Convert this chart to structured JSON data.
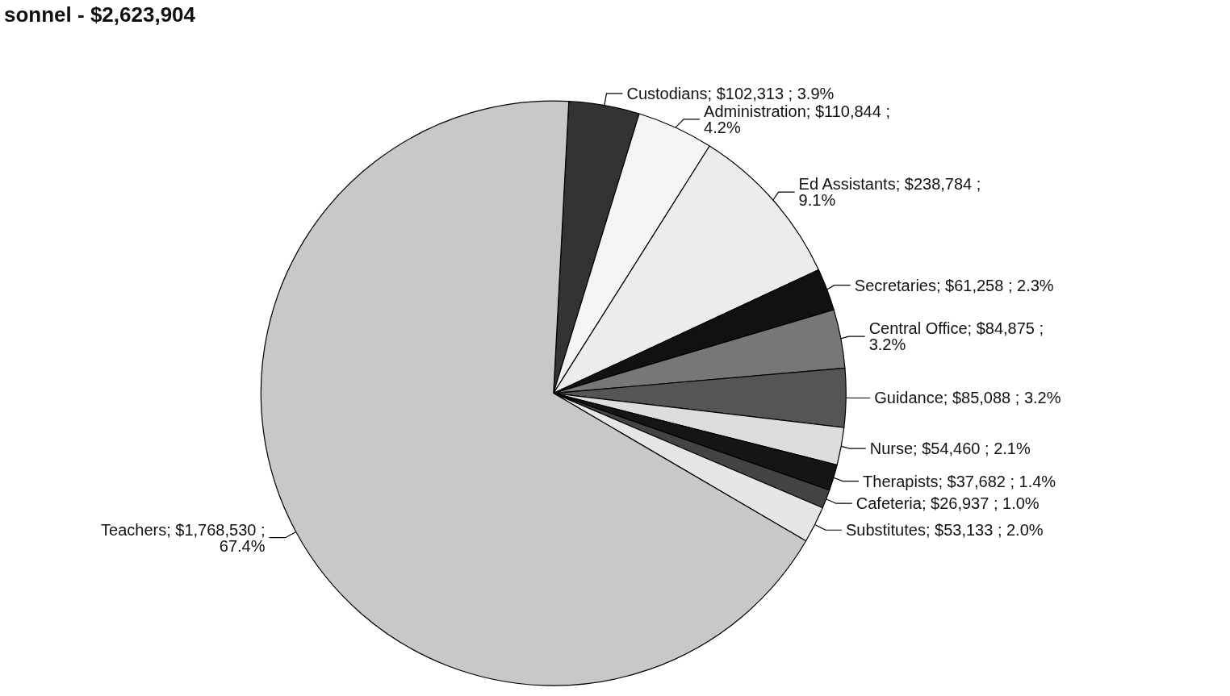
{
  "chart_data": {
    "type": "pie",
    "title": "sonnel - $2,623,904",
    "categories": [
      "Custodians",
      "Administration",
      "Ed Assistants",
      "Secretaries",
      "Central Office",
      "Guidance",
      "Nurse",
      "Therapists",
      "Cafeteria",
      "Substitutes",
      "Teachers"
    ],
    "values": [
      102313,
      110844,
      238784,
      61258,
      84875,
      85088,
      54460,
      37682,
      26937,
      53133,
      1768530
    ],
    "value_labels": [
      "$102,313 ; 3.9%",
      "$110,844 ;\n4.2%",
      "$238,784 ;\n9.1%",
      "$61,258 ; 2.3%",
      "$84,875 ;\n3.2%",
      "$85,088 ; 3.2%",
      "$54,460 ; 2.1%",
      "$37,682 ; 1.4%",
      "$26,937 ; 1.0%",
      "$53,133 ; 2.0%",
      "$1,768,530 ;\n67.4%"
    ],
    "colors": [
      "#333333",
      "#f4f4f4",
      "#ececec",
      "#111111",
      "#777777",
      "#555555",
      "#dddddd",
      "#151515",
      "#444444",
      "#e6e6e6",
      "#c8c8c8"
    ],
    "legend": false
  }
}
